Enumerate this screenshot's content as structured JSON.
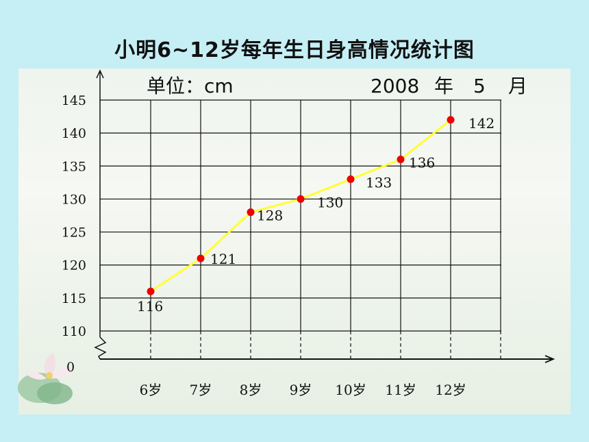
{
  "chart_data": {
    "type": "line",
    "title": "小明6~12岁每年生日身高情况统计图",
    "unit_label": "单位：cm",
    "date": {
      "year": "2008",
      "year_char": "年",
      "month": "5",
      "month_char": "月"
    },
    "categories": [
      "6岁",
      "7岁",
      "8岁",
      "9岁",
      "10岁",
      "11岁",
      "12岁"
    ],
    "values": [
      116,
      121,
      128,
      130,
      133,
      136,
      142
    ],
    "data_labels": [
      "116",
      "121",
      "128",
      "130",
      "133",
      "136",
      "142"
    ],
    "y_ticks": [
      "145",
      "140",
      "135",
      "130",
      "125",
      "120",
      "115",
      "110"
    ],
    "y_tick_values": [
      145,
      140,
      135,
      130,
      125,
      120,
      115,
      110
    ],
    "origin_label": "0",
    "ylim": [
      110,
      145
    ],
    "grid": true,
    "axis_break": true,
    "colors": {
      "line": "#ffff33",
      "marker": "#ee0000"
    }
  }
}
